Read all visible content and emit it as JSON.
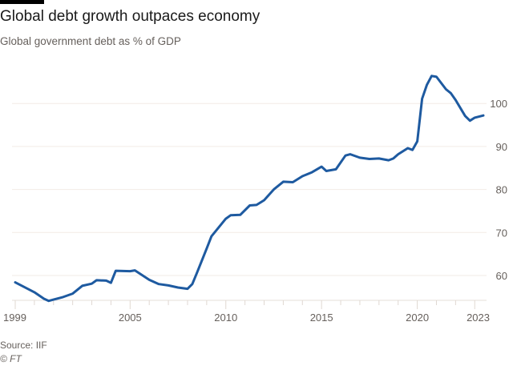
{
  "header": {
    "title": "Global debt growth outpaces economy",
    "subtitle": "Global government debt as % of GDP"
  },
  "footer": {
    "source": "Source: IIF",
    "credit": "© FT"
  },
  "chart_data": {
    "type": "line",
    "title": "Global debt growth outpaces economy",
    "subtitle": "Global government debt as % of GDP",
    "xlabel": "",
    "ylabel": "",
    "xlim": [
      1999,
      2023.45
    ],
    "ylim": [
      54,
      108
    ],
    "x_ticks": [
      1999,
      2005,
      2010,
      2015,
      2020,
      2023
    ],
    "x_tick_labels": [
      "1999",
      "2005",
      "2010",
      "2015",
      "2020",
      "2023"
    ],
    "y_ticks": [
      60,
      70,
      80,
      90,
      100
    ],
    "y_tick_labels": [
      "60",
      "70",
      "80",
      "90",
      "100"
    ],
    "grid": true,
    "color": "#1e5aa0",
    "x": [
      1999,
      2000,
      2000.5,
      2000.75,
      2001,
      2001.5,
      2002,
      2002.5,
      2003,
      2003.25,
      2003.75,
      2004,
      2004.25,
      2005,
      2005.25,
      2006,
      2006.5,
      2007,
      2007.5,
      2008,
      2008.25,
      2008.5,
      2009,
      2009.25,
      2010,
      2010.25,
      2010.75,
      2011.25,
      2011.6,
      2012,
      2012.5,
      2013,
      2013.5,
      2014,
      2014.5,
      2015,
      2015.25,
      2015.75,
      2016.25,
      2016.5,
      2017,
      2017.5,
      2018,
      2018.5,
      2018.75,
      2019,
      2019.5,
      2019.75,
      2020,
      2020.25,
      2020.5,
      2020.75,
      2021,
      2021.5,
      2021.75,
      2022,
      2022.5,
      2022.75,
      2023,
      2023.45
    ],
    "values": [
      58.4,
      56.1,
      54.6,
      54.1,
      54.4,
      55.0,
      55.8,
      57.6,
      58.1,
      58.9,
      58.8,
      58.3,
      61.1,
      61.0,
      61.2,
      59.0,
      58.0,
      57.7,
      57.2,
      56.9,
      58.0,
      60.7,
      66.3,
      69.1,
      73.2,
      74.0,
      74.1,
      76.3,
      76.4,
      77.5,
      80.0,
      81.8,
      81.7,
      83.1,
      84.0,
      85.3,
      84.3,
      84.7,
      87.9,
      88.2,
      87.4,
      87.1,
      87.2,
      86.8,
      87.2,
      88.2,
      89.6,
      89.2,
      91.2,
      101.1,
      104.3,
      106.4,
      106.2,
      103.3,
      102.4,
      100.8,
      97.1,
      96.0,
      96.7,
      97.2
    ]
  }
}
